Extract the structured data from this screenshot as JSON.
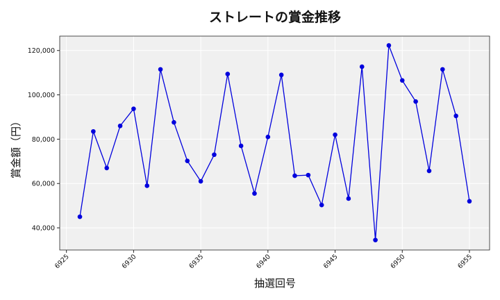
{
  "chart_data": {
    "type": "line",
    "title": "ストレートの賞金推移",
    "xlabel": "抽選回号",
    "ylabel": "賞金額（円）",
    "xlim": [
      6924.5,
      6956.5
    ],
    "ylim": [
      30000,
      126500
    ],
    "x_ticks": [
      6925,
      6930,
      6935,
      6940,
      6945,
      6950,
      6955
    ],
    "x_tick_labels": [
      "6925",
      "6930",
      "6935",
      "6940",
      "6945",
      "6950",
      "6955"
    ],
    "y_ticks": [
      40000,
      60000,
      80000,
      100000,
      120000
    ],
    "y_tick_labels": [
      "40,000",
      "60,000",
      "80,000",
      "100,000",
      "120,000"
    ],
    "grid": true,
    "colors": {
      "line": "#0000dd",
      "marker": "#0000dd",
      "plot_bg": "#f0f0f0",
      "grid": "#ffffff"
    },
    "series": [
      {
        "x": [
          6926,
          6927,
          6928,
          6929,
          6930,
          6931,
          6932,
          6933,
          6934,
          6935,
          6936,
          6937,
          6938,
          6939,
          6940,
          6941,
          6942,
          6943,
          6944,
          6945,
          6946,
          6947,
          6948,
          6949,
          6950,
          6951,
          6952,
          6953,
          6954,
          6955
        ],
        "values": [
          45000,
          83500,
          67000,
          86000,
          93700,
          59000,
          111500,
          87600,
          70200,
          61000,
          73000,
          109400,
          77000,
          55500,
          81000,
          109000,
          63500,
          63800,
          50300,
          82000,
          53200,
          112700,
          34500,
          122300,
          106500,
          97000,
          65700,
          111500,
          90500,
          52000
        ]
      }
    ]
  }
}
